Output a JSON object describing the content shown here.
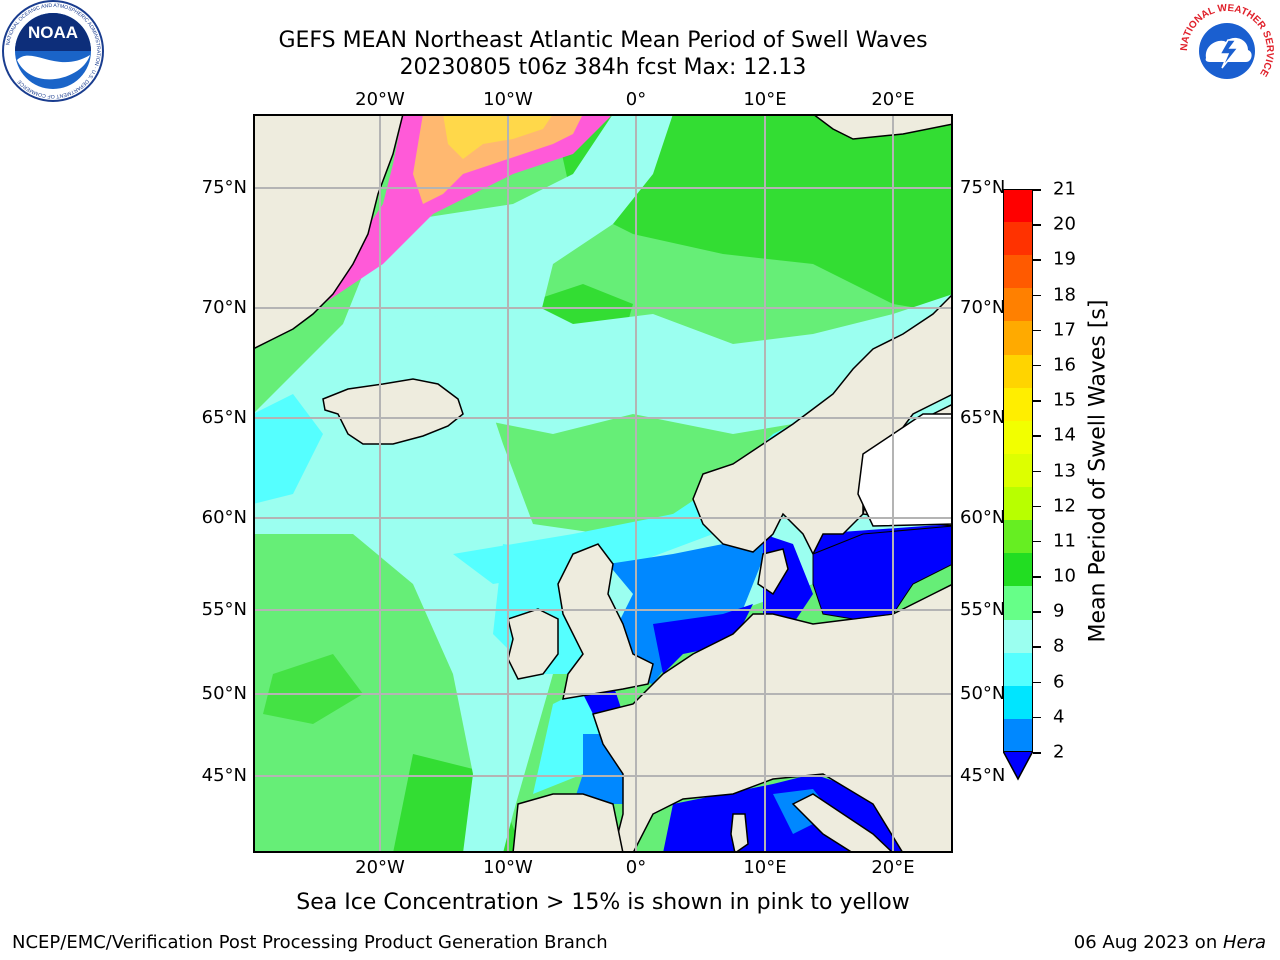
{
  "header": {
    "title_line1": "GEFS MEAN Northeast Atlantic Mean Period of Swell Waves",
    "title_line2": "20230805 t06z 384h fcst   Max: 12.13"
  },
  "logos": {
    "left": "NOAA",
    "left_ring_text": "NATIONAL OCEANIC AND ATMOSPHERIC ADMINISTRATION · U.S. DEPARTMENT OF COMMERCE",
    "right_ring_text": "NATIONAL WEATHER SERVICE"
  },
  "map": {
    "lon_labels": [
      "20°W",
      "10°W",
      "0°",
      "10°E",
      "20°E"
    ],
    "lat_labels": [
      "75°N",
      "70°N",
      "65°N",
      "60°N",
      "55°N",
      "50°N",
      "45°N"
    ],
    "colors": {
      "land": "#eeecde",
      "sea_ice_pink": "#ff5ad8",
      "sea_ice_yellow": "#ffd84a",
      "grid": "#b4b4b4"
    }
  },
  "colorbar": {
    "label": "Mean Period of Swell Waves [s]",
    "ticks": [
      "21",
      "20",
      "19",
      "18",
      "17",
      "16",
      "15",
      "14",
      "13",
      "12",
      "11",
      "10",
      "9",
      "8",
      "6",
      "4",
      "2"
    ],
    "colors_top_to_bottom": [
      "#ff0000",
      "#ff3200",
      "#ff5a00",
      "#ff8000",
      "#ffaa00",
      "#ffd400",
      "#ffee00",
      "#f2ff00",
      "#ddff00",
      "#b8ff00",
      "#66ee22",
      "#22dd22",
      "#66ff88",
      "#9bfff0",
      "#55ffff",
      "#00e5ff",
      "#0088ff"
    ],
    "under_color": "#0000ff"
  },
  "caption": "Sea Ice Concentration > 15% is shown in pink to yellow",
  "footer": {
    "left": "NCEP/EMC/Verification Post Processing Product Generation Branch",
    "right_date": "06 Aug 2023 on ",
    "right_host": "Hera"
  }
}
